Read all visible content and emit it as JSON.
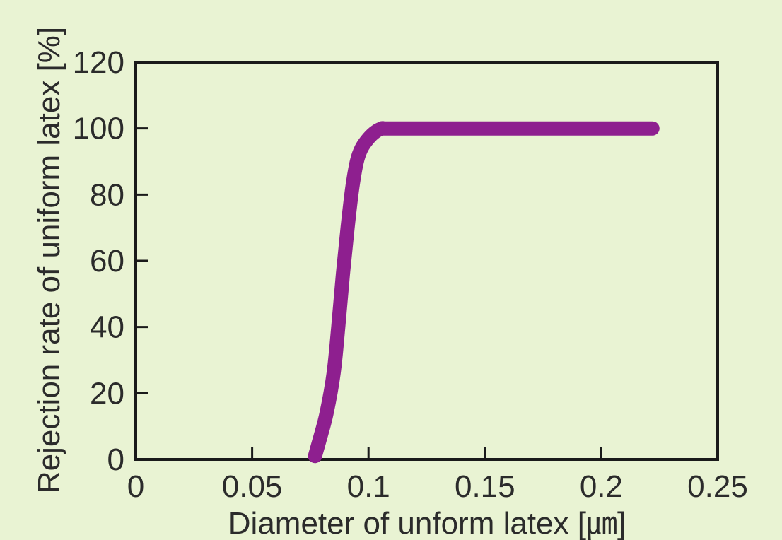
{
  "chart_data": {
    "type": "line",
    "title": "",
    "xlabel": "Diameter of unform latex [㎛]",
    "ylabel": "Rejection rate of uniform latex [%]",
    "xlim": [
      0,
      0.25
    ],
    "ylim": [
      0,
      120
    ],
    "xticks": [
      "0",
      "0.05",
      "0.1",
      "0.15",
      "0.2",
      "0.25"
    ],
    "yticks": [
      "0",
      "20",
      "40",
      "60",
      "80",
      "100",
      "120"
    ],
    "grid": false,
    "legend": "none",
    "line_color": "#8e1f8f",
    "series": [
      {
        "x": [
          0.077,
          0.079,
          0.082,
          0.085,
          0.087,
          0.089,
          0.091,
          0.093,
          0.095,
          0.097,
          0.1,
          0.103,
          0.106,
          0.11,
          0.15,
          0.2,
          0.222
        ],
        "y": [
          1,
          6,
          14,
          26,
          40,
          56,
          70,
          82,
          90,
          94,
          97,
          99,
          100,
          100,
          100,
          100,
          100
        ]
      }
    ]
  }
}
